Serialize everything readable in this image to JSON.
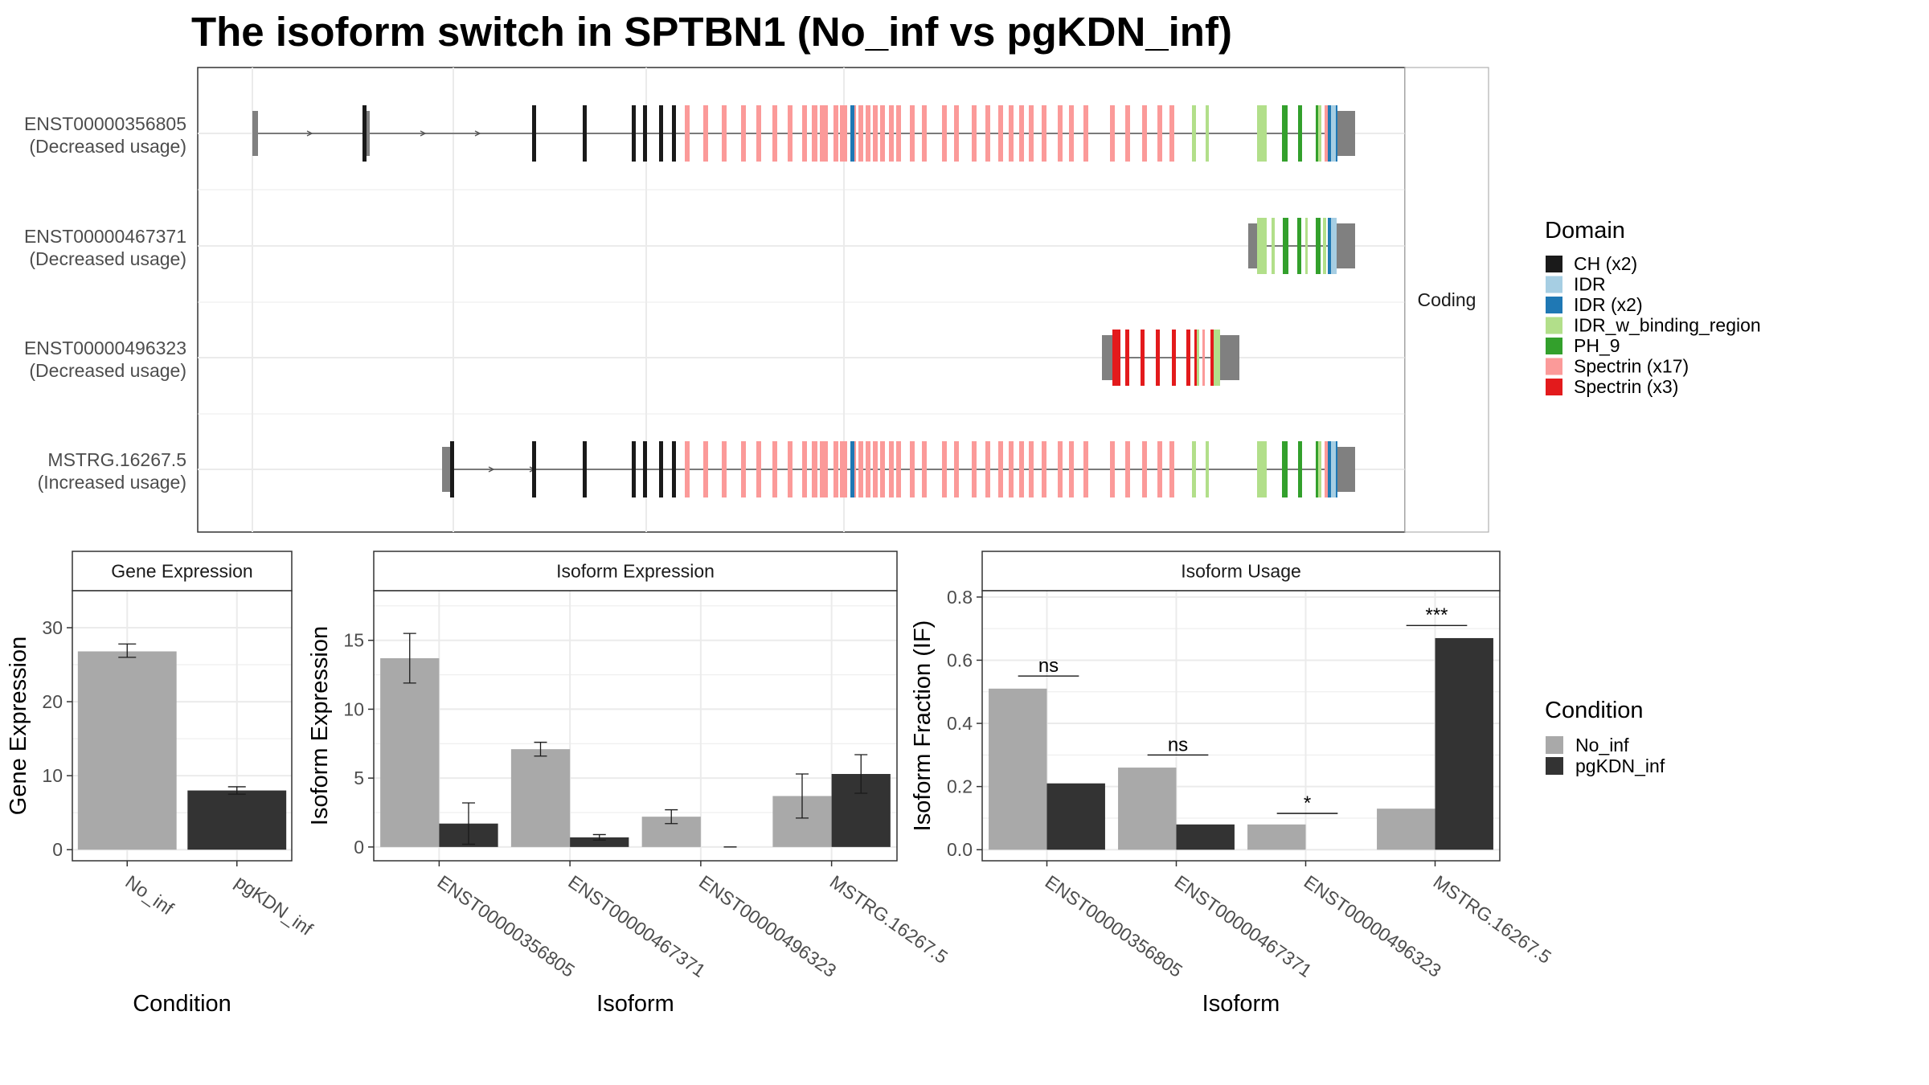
{
  "title": "The isoform switch in SPTBN1 (No_inf vs pgKDN_inf)",
  "colors": {
    "exon_utr": "#808080",
    "intron": "#555555",
    "no_inf": "#A9A9A9",
    "pgkdn_inf": "#333333",
    "panel_border": "#333333",
    "strip_fill": "#FFFFFF",
    "grid": "#EBEBEB"
  },
  "structure": {
    "facet_label": "Coding",
    "isoforms": [
      {
        "id": "ENST00000356805",
        "usage": "(Decreased usage)"
      },
      {
        "id": "ENST00000467371",
        "usage": "(Decreased usage)"
      },
      {
        "id": "ENST00000496323",
        "usage": "(Decreased usage)"
      },
      {
        "id": "MSTRG.16267.5",
        "usage": "(Increased usage)"
      }
    ]
  },
  "legend_domain": {
    "title": "Domain",
    "items": [
      {
        "label": "CH (x2)",
        "color": "#1A1A1A"
      },
      {
        "label": "IDR",
        "color": "#A6CEE3"
      },
      {
        "label": "IDR (x2)",
        "color": "#1F78B4"
      },
      {
        "label": "IDR_w_binding_region",
        "color": "#B2DF8A"
      },
      {
        "label": "PH_9",
        "color": "#33A02C"
      },
      {
        "label": "Spectrin (x17)",
        "color": "#FB9A99"
      },
      {
        "label": "Spectrin (x3)",
        "color": "#E31A1C"
      }
    ]
  },
  "legend_condition": {
    "title": "Condition",
    "items": [
      {
        "label": "No_inf",
        "color": "#A9A9A9"
      },
      {
        "label": "pgKDN_inf",
        "color": "#333333"
      }
    ]
  },
  "chart_data": [
    {
      "type": "bar",
      "title": "Gene Expression",
      "xlabel": "Condition",
      "ylabel": "Gene Expression",
      "categories": [
        "No_inf",
        "pgKDN_inf"
      ],
      "values": [
        26.8,
        8.0
      ],
      "error_low": [
        26.0,
        7.5
      ],
      "error_high": [
        27.8,
        8.5
      ],
      "colors": [
        "#A9A9A9",
        "#333333"
      ],
      "ylim": [
        -1.5,
        35
      ],
      "yticks": [
        0,
        10,
        20,
        30
      ]
    },
    {
      "type": "bar",
      "title": "Isoform Expression",
      "xlabel": "Isoform",
      "ylabel": "Isoform Expression",
      "categories": [
        "ENST00000356805",
        "ENST00000467371",
        "ENST00000496323",
        "MSTRG.16267.5"
      ],
      "series": [
        {
          "name": "No_inf",
          "values": [
            13.7,
            7.1,
            2.2,
            3.7
          ],
          "error_low": [
            11.9,
            6.6,
            1.7,
            2.1
          ],
          "error_high": [
            15.5,
            7.6,
            2.7,
            5.3
          ]
        },
        {
          "name": "pgKDN_inf",
          "values": [
            1.7,
            0.7,
            0.0,
            5.3
          ],
          "error_low": [
            0.2,
            0.5,
            0.0,
            3.9
          ],
          "error_high": [
            3.2,
            0.9,
            0.0,
            6.7
          ]
        }
      ],
      "ylim": [
        -1.0,
        18.6
      ],
      "yticks": [
        0,
        5,
        10,
        15
      ]
    },
    {
      "type": "bar",
      "title": "Isoform Usage",
      "xlabel": "Isoform",
      "ylabel": "Isoform Fraction (IF)",
      "categories": [
        "ENST00000356805",
        "ENST00000467371",
        "ENST00000496323",
        "MSTRG.16267.5"
      ],
      "series": [
        {
          "name": "No_inf",
          "values": [
            0.51,
            0.26,
            0.08,
            0.13
          ]
        },
        {
          "name": "pgKDN_inf",
          "values": [
            0.21,
            0.08,
            0.0,
            0.67
          ]
        }
      ],
      "significance": [
        "ns",
        "ns",
        "*",
        "***"
      ],
      "sig_y": [
        0.55,
        0.3,
        0.115,
        0.71
      ],
      "ylim": [
        -0.035,
        0.82
      ],
      "yticks": [
        "0.0",
        "0.2",
        "0.4",
        "0.6",
        "0.8"
      ]
    }
  ]
}
